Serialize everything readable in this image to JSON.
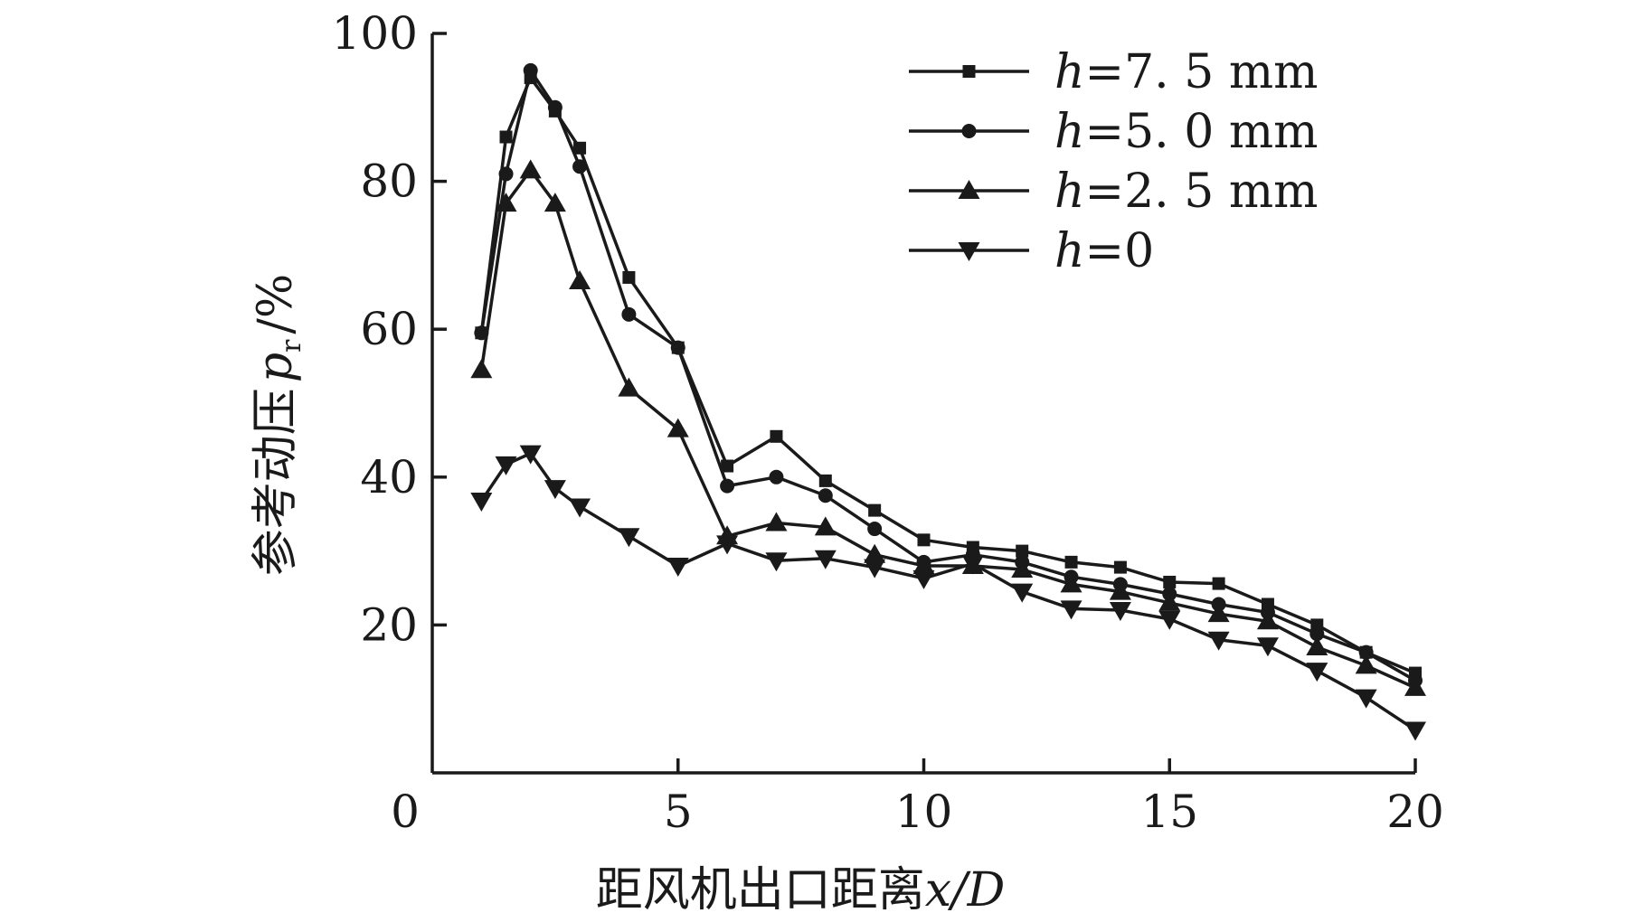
{
  "chart_data": {
    "type": "line",
    "title": "",
    "xlabel_prefix": "距风机出口距离",
    "xlabel_var": "x/D",
    "ylabel_prefix": "参考动压",
    "ylabel_var": "p",
    "ylabel_sub": "r",
    "ylabel_unit": "/%",
    "xlim": [
      0,
      20
    ],
    "ylim": [
      0,
      100
    ],
    "x_ticks": [
      0,
      5,
      10,
      15,
      20
    ],
    "y_ticks": [
      20,
      40,
      60,
      80,
      100
    ],
    "grid": false,
    "legend_position": "top-right",
    "series": [
      {
        "name_var": "h",
        "name_rest": "=7. 5 mm",
        "marker": "square",
        "x": [
          1.0,
          1.5,
          2.0,
          2.5,
          3.0,
          4.0,
          5.0,
          6.0,
          7.0,
          8.0,
          9.0,
          10.0,
          11.0,
          12.0,
          13.0,
          14.0,
          15.0,
          16.0,
          17.0,
          18.0,
          19.0,
          20.0
        ],
        "y": [
          59.5,
          86,
          94,
          89.5,
          84.5,
          67,
          57.5,
          41.5,
          45.5,
          39.5,
          35.5,
          31.5,
          30.5,
          30,
          28.5,
          27.8,
          25.8,
          25.6,
          22.8,
          20,
          16.3,
          13.5
        ]
      },
      {
        "name_var": "h",
        "name_rest": "=5. 0 mm",
        "marker": "circle",
        "x": [
          1.0,
          1.5,
          2.0,
          2.5,
          3.0,
          4.0,
          5.0,
          6.0,
          7.0,
          8.0,
          9.0,
          10.0,
          11.0,
          12.0,
          13.0,
          14.0,
          15.0,
          16.0,
          17.0,
          18.0,
          19.0,
          20.0
        ],
        "y": [
          59.5,
          81,
          95,
          90,
          82,
          62,
          57.5,
          38.8,
          40,
          37.5,
          33,
          28.5,
          29.5,
          28.5,
          26.5,
          25.5,
          24.2,
          22.8,
          21.7,
          18.8,
          16.3,
          12.5
        ]
      },
      {
        "name_var": "h",
        "name_rest": "=2. 5 mm",
        "marker": "triangle-up",
        "x": [
          1.0,
          1.5,
          2.0,
          2.5,
          3.0,
          4.0,
          5.0,
          6.0,
          7.0,
          8.0,
          9.0,
          10.0,
          11.0,
          12.0,
          13.0,
          14.0,
          15.0,
          16.0,
          17.0,
          18.0,
          19.0,
          20.0
        ],
        "y": [
          54.5,
          77,
          81.5,
          77,
          66.5,
          52,
          46.5,
          32,
          33.8,
          33.2,
          29.5,
          28,
          28,
          27.5,
          25.5,
          24.5,
          23,
          21.5,
          20.5,
          17,
          14.5,
          11.5
        ]
      },
      {
        "name_var": "h",
        "name_rest": "=0",
        "marker": "triangle-down",
        "x": [
          1.0,
          1.5,
          2.0,
          2.5,
          3.0,
          4.0,
          5.0,
          6.0,
          7.0,
          8.0,
          9.0,
          10.0,
          11.0,
          12.0,
          13.0,
          14.0,
          15.0,
          16.0,
          17.0,
          18.0,
          19.0,
          20.0
        ],
        "y": [
          36.8,
          41.7,
          43.2,
          38.5,
          36,
          32,
          28,
          31,
          28.7,
          29,
          27.8,
          26.3,
          28.3,
          24.5,
          22.2,
          22,
          20.8,
          18,
          17.2,
          13.8,
          10.2,
          5.8
        ]
      }
    ]
  }
}
